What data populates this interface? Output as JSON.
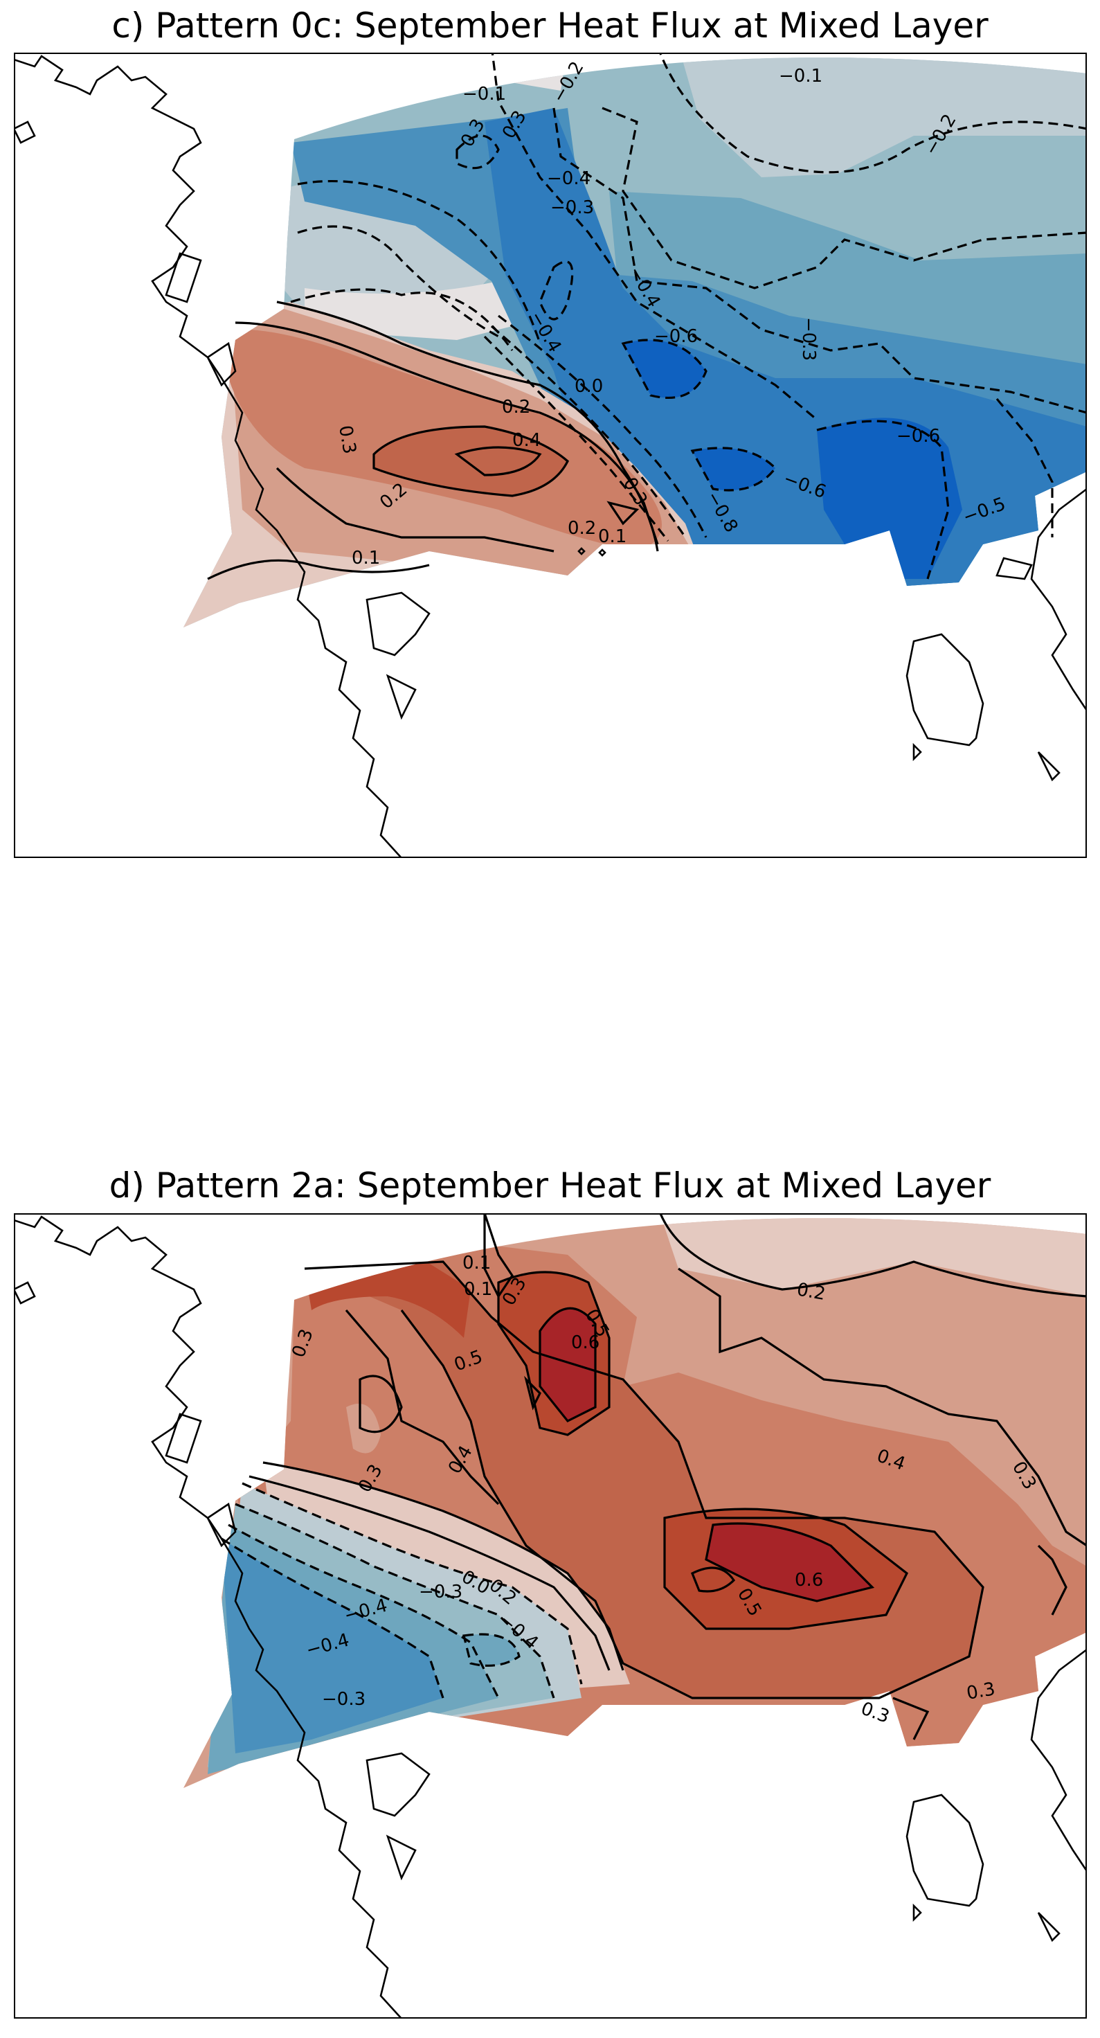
{
  "panels": [
    {
      "id": "c",
      "title": "c) Pattern 0c: September Heat Flux at Mixed Layer",
      "colors": {
        "p1": "#e4c9c0",
        "p2": "#d59e8b",
        "p3": "#cc7f67",
        "p4": "#c0654b",
        "n0": "#e6e2e2",
        "n1": "#bdccd3",
        "n2": "#97bbc6",
        "n3": "#6ea6be",
        "n4": "#4a90bd",
        "n5": "#2f7cbd",
        "n6": "#0f61c0"
      },
      "contour_labels": [
        "−0.1",
        "−0.1",
        "−0.2",
        "−0.2",
        "0.3",
        "0.3",
        "−0.4",
        "−0.3",
        "−0.4",
        "−0.4",
        "−0.3",
        "−0.6",
        "−0.6",
        "−0.6",
        "−0.5",
        "−0.8",
        "0.0",
        "0.2",
        "0.4",
        "0.3",
        "0.3",
        "0.2",
        "0.1",
        "0.2",
        "0.1"
      ]
    },
    {
      "id": "d",
      "title": "d) Pattern 2a: September Heat Flux at Mixed Layer",
      "colors": {
        "p1": "#e4c9c0",
        "p2": "#d59e8b",
        "p3": "#cc7f67",
        "p4": "#c0654b",
        "p5": "#b8482f",
        "p6": "#a72428",
        "n1": "#bdccd3",
        "n2": "#97bbc6",
        "n3": "#6ea6be",
        "n4": "#4a90bd"
      },
      "contour_labels": [
        "0.1",
        "0.1",
        "0.3",
        "0.3",
        "0.5",
        "0.5",
        "0.6",
        "0.2",
        "0.4",
        "0.3",
        "0.3",
        "0.4",
        "0.6",
        "0.5",
        "0.3",
        "0.3",
        "−0.3",
        "−0.4",
        "−0.4",
        "−0.3",
        "0.0",
        "0.2",
        "−0.4"
      ]
    }
  ]
}
